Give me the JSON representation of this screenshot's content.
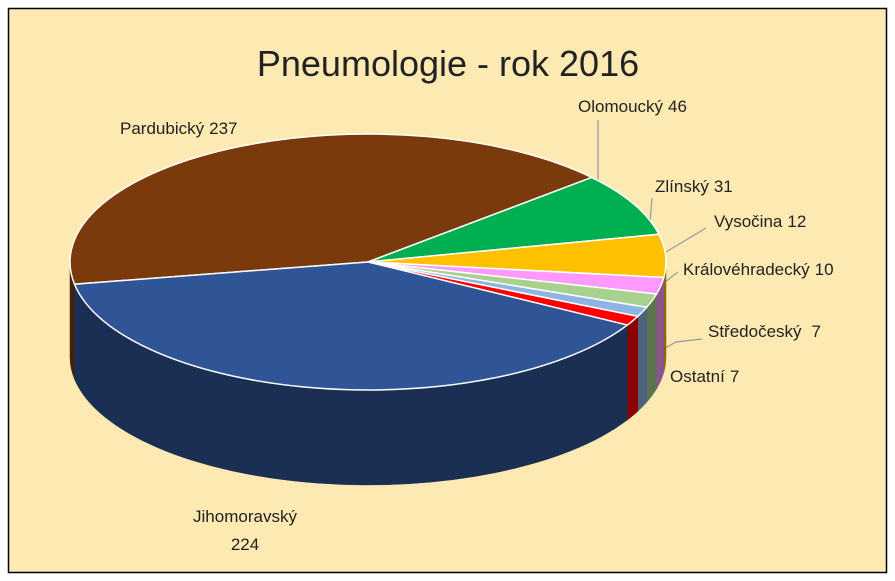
{
  "chart_data": {
    "type": "pie3d",
    "title": "Pneumologie - rok 2016",
    "categories": [
      "Pardubický",
      "Olomoucký",
      "Zlínský",
      "Vysočina",
      "Královéhradecký",
      "Středočeský",
      "Ostatní",
      "Jihomoravský"
    ],
    "values": [
      237,
      46,
      31,
      12,
      10,
      7,
      7,
      224
    ],
    "colors": [
      "#7b3a0c",
      "#00b050",
      "#ffc000",
      "#ff99ff",
      "#a9d18e",
      "#8eb4e3",
      "#ff0000",
      "#2f5597"
    ]
  }
}
